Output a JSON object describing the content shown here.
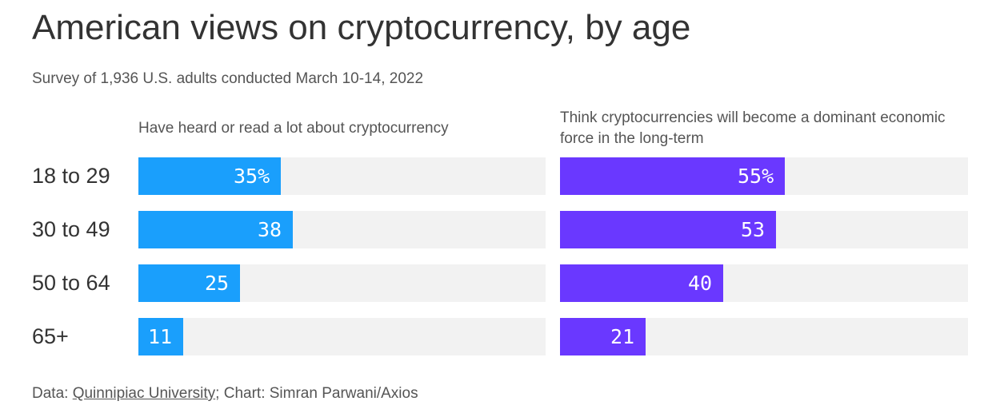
{
  "title": "American views on cryptocurrency, by age",
  "subtitle": "Survey of 1,936 U.S. adults conducted March 10-14, 2022",
  "footer": {
    "data_prefix": "Data: ",
    "source_link": "Quinnipiac University",
    "rest": "; Chart: Simran Parwani/Axios"
  },
  "colors": {
    "panel_a": "#1a9ffc",
    "panel_b": "#6a38ff",
    "track": "#f2f2f2"
  },
  "chart_data": {
    "type": "bar",
    "orientation": "horizontal",
    "categories": [
      "18 to 29",
      "30 to 49",
      "50 to 64",
      "65+"
    ],
    "series": [
      {
        "name": "Have heard or read a lot about cryptocurrency",
        "values": [
          35,
          38,
          25,
          11
        ],
        "labels": [
          "35%",
          "38",
          "25",
          "11"
        ]
      },
      {
        "name": "Think cryptocurrencies will become a dominant economic force in the long-term",
        "values": [
          55,
          53,
          40,
          21
        ],
        "labels": [
          "55%",
          "53",
          "40",
          "21"
        ]
      }
    ],
    "xlim": [
      0,
      100
    ],
    "grid": false
  }
}
